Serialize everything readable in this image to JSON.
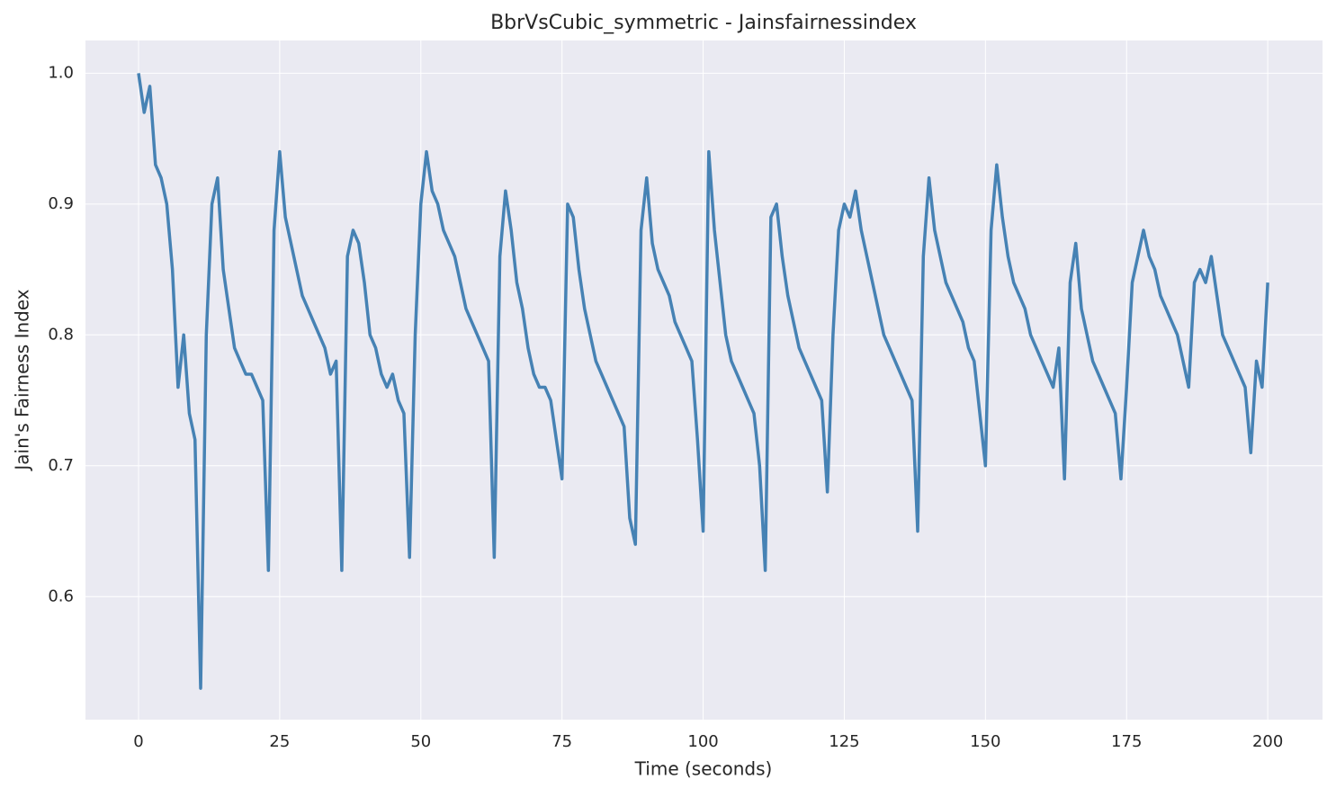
{
  "chart_data": {
    "type": "line",
    "title": "BbrVsCubic_symmetric - Jainsfairnessindex",
    "x_label": "Time (seconds)",
    "y_label": "Jain's Fairness Index",
    "x": [
      0,
      1,
      2,
      3,
      4,
      5,
      6,
      7,
      8,
      9,
      10,
      11,
      12,
      13,
      14,
      15,
      16,
      17,
      18,
      19,
      20,
      21,
      22,
      23,
      24,
      25,
      26,
      27,
      28,
      29,
      30,
      31,
      32,
      33,
      34,
      35,
      36,
      37,
      38,
      39,
      40,
      41,
      42,
      43,
      44,
      45,
      46,
      47,
      48,
      49,
      50,
      51,
      52,
      53,
      54,
      55,
      56,
      57,
      58,
      59,
      60,
      61,
      62,
      63,
      64,
      65,
      66,
      67,
      68,
      69,
      70,
      71,
      72,
      73,
      74,
      75,
      76,
      77,
      78,
      79,
      80,
      81,
      82,
      83,
      84,
      85,
      86,
      87,
      88,
      89,
      90,
      91,
      92,
      93,
      94,
      95,
      96,
      97,
      98,
      99,
      100,
      101,
      102,
      103,
      104,
      105,
      106,
      107,
      108,
      109,
      110,
      111,
      112,
      113,
      114,
      115,
      116,
      117,
      118,
      119,
      120,
      121,
      122,
      123,
      124,
      125,
      126,
      127,
      128,
      129,
      130,
      131,
      132,
      133,
      134,
      135,
      136,
      137,
      138,
      139,
      140,
      141,
      142,
      143,
      144,
      145,
      146,
      147,
      148,
      149,
      150,
      151,
      152,
      153,
      154,
      155,
      156,
      157,
      158,
      159,
      160,
      161,
      162,
      163,
      164,
      165,
      166,
      167,
      168,
      169,
      170,
      171,
      172,
      173,
      174,
      175,
      176,
      177,
      178,
      179,
      180,
      181,
      182,
      183,
      184,
      185,
      186,
      187,
      188,
      189,
      190,
      191,
      192,
      193,
      194,
      195,
      196,
      197,
      198,
      199,
      200
    ],
    "values": [
      1.0,
      0.97,
      0.99,
      0.93,
      0.92,
      0.9,
      0.85,
      0.76,
      0.8,
      0.74,
      0.72,
      0.53,
      0.8,
      0.9,
      0.92,
      0.85,
      0.82,
      0.79,
      0.78,
      0.77,
      0.77,
      0.76,
      0.75,
      0.62,
      0.88,
      0.94,
      0.89,
      0.87,
      0.85,
      0.83,
      0.82,
      0.81,
      0.8,
      0.79,
      0.77,
      0.78,
      0.62,
      0.86,
      0.88,
      0.87,
      0.84,
      0.8,
      0.79,
      0.77,
      0.76,
      0.77,
      0.75,
      0.74,
      0.63,
      0.8,
      0.9,
      0.94,
      0.91,
      0.9,
      0.88,
      0.87,
      0.86,
      0.84,
      0.82,
      0.81,
      0.8,
      0.79,
      0.78,
      0.63,
      0.86,
      0.91,
      0.88,
      0.84,
      0.82,
      0.79,
      0.77,
      0.76,
      0.76,
      0.75,
      0.72,
      0.69,
      0.9,
      0.89,
      0.85,
      0.82,
      0.8,
      0.78,
      0.77,
      0.76,
      0.75,
      0.74,
      0.73,
      0.66,
      0.64,
      0.88,
      0.92,
      0.87,
      0.85,
      0.84,
      0.83,
      0.81,
      0.8,
      0.79,
      0.78,
      0.72,
      0.65,
      0.94,
      0.88,
      0.84,
      0.8,
      0.78,
      0.77,
      0.76,
      0.75,
      0.74,
      0.7,
      0.62,
      0.89,
      0.9,
      0.86,
      0.83,
      0.81,
      0.79,
      0.78,
      0.77,
      0.76,
      0.75,
      0.68,
      0.8,
      0.88,
      0.9,
      0.89,
      0.91,
      0.88,
      0.86,
      0.84,
      0.82,
      0.8,
      0.79,
      0.78,
      0.77,
      0.76,
      0.75,
      0.65,
      0.86,
      0.92,
      0.88,
      0.86,
      0.84,
      0.83,
      0.82,
      0.81,
      0.79,
      0.78,
      0.74,
      0.7,
      0.88,
      0.93,
      0.89,
      0.86,
      0.84,
      0.83,
      0.82,
      0.8,
      0.79,
      0.78,
      0.77,
      0.76,
      0.79,
      0.69,
      0.84,
      0.87,
      0.82,
      0.8,
      0.78,
      0.77,
      0.76,
      0.75,
      0.74,
      0.69,
      0.76,
      0.84,
      0.86,
      0.88,
      0.86,
      0.85,
      0.83,
      0.82,
      0.81,
      0.8,
      0.78,
      0.76,
      0.84,
      0.85,
      0.84,
      0.86,
      0.83,
      0.8,
      0.79,
      0.78,
      0.77,
      0.76,
      0.71,
      0.78,
      0.76,
      0.84
    ],
    "color": "#4682b4",
    "xlim": [
      -9.4,
      209.7
    ],
    "xticks": [
      0,
      25,
      50,
      75,
      100,
      125,
      150,
      175,
      200
    ],
    "ylim": [
      0.506,
      1.025
    ],
    "yticks": [
      0.6,
      0.7,
      0.8,
      0.9,
      {
        "value": 1,
        "label": "1.0"
      }
    ],
    "grid": true
  }
}
